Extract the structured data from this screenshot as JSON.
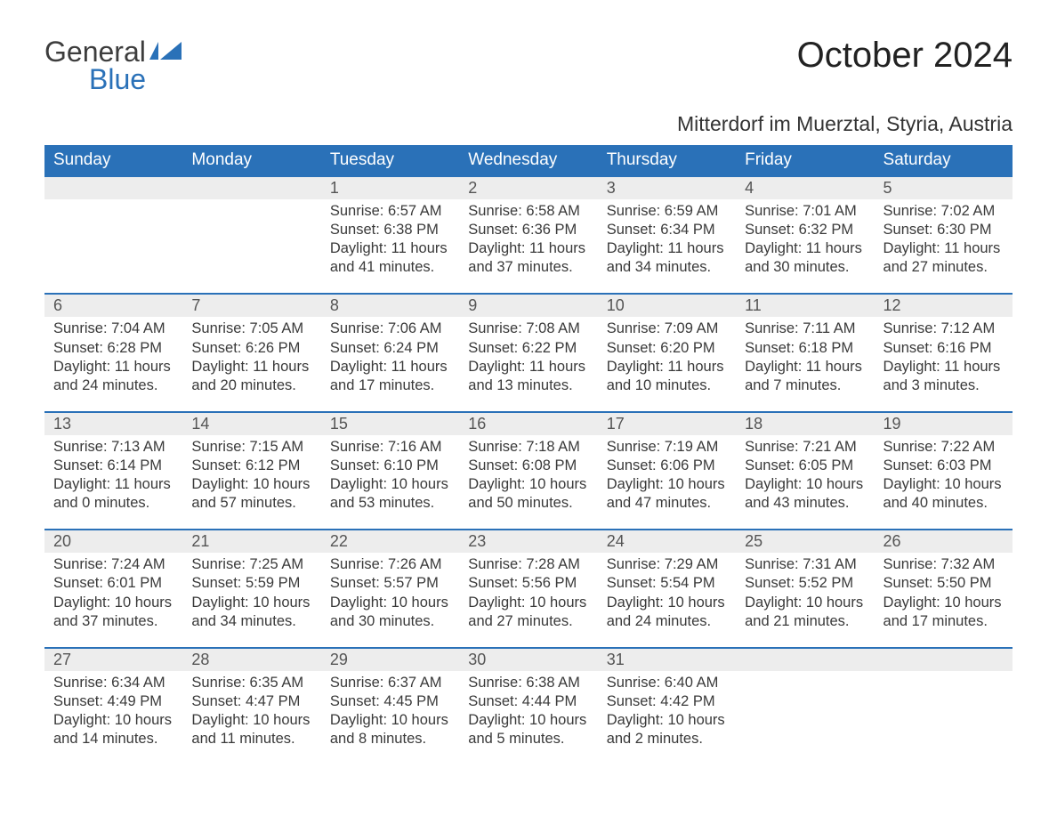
{
  "brand": {
    "general": "General",
    "blue": "Blue"
  },
  "title": "October 2024",
  "location": "Mitterdorf im Muerztal, Styria, Austria",
  "colors": {
    "header_bg": "#2a71b8",
    "header_fg": "#ffffff",
    "daynum_bg": "#ededed",
    "border_top": "#2a71b8",
    "text": "#3a3a3a",
    "page_bg": "#ffffff"
  },
  "weekdays": [
    "Sunday",
    "Monday",
    "Tuesday",
    "Wednesday",
    "Thursday",
    "Friday",
    "Saturday"
  ],
  "weeks": [
    [
      null,
      null,
      {
        "day": "1",
        "sunrise": "6:57 AM",
        "sunset": "6:38 PM",
        "daylight": "11 hours and 41 minutes."
      },
      {
        "day": "2",
        "sunrise": "6:58 AM",
        "sunset": "6:36 PM",
        "daylight": "11 hours and 37 minutes."
      },
      {
        "day": "3",
        "sunrise": "6:59 AM",
        "sunset": "6:34 PM",
        "daylight": "11 hours and 34 minutes."
      },
      {
        "day": "4",
        "sunrise": "7:01 AM",
        "sunset": "6:32 PM",
        "daylight": "11 hours and 30 minutes."
      },
      {
        "day": "5",
        "sunrise": "7:02 AM",
        "sunset": "6:30 PM",
        "daylight": "11 hours and 27 minutes."
      }
    ],
    [
      {
        "day": "6",
        "sunrise": "7:04 AM",
        "sunset": "6:28 PM",
        "daylight": "11 hours and 24 minutes."
      },
      {
        "day": "7",
        "sunrise": "7:05 AM",
        "sunset": "6:26 PM",
        "daylight": "11 hours and 20 minutes."
      },
      {
        "day": "8",
        "sunrise": "7:06 AM",
        "sunset": "6:24 PM",
        "daylight": "11 hours and 17 minutes."
      },
      {
        "day": "9",
        "sunrise": "7:08 AM",
        "sunset": "6:22 PM",
        "daylight": "11 hours and 13 minutes."
      },
      {
        "day": "10",
        "sunrise": "7:09 AM",
        "sunset": "6:20 PM",
        "daylight": "11 hours and 10 minutes."
      },
      {
        "day": "11",
        "sunrise": "7:11 AM",
        "sunset": "6:18 PM",
        "daylight": "11 hours and 7 minutes."
      },
      {
        "day": "12",
        "sunrise": "7:12 AM",
        "sunset": "6:16 PM",
        "daylight": "11 hours and 3 minutes."
      }
    ],
    [
      {
        "day": "13",
        "sunrise": "7:13 AM",
        "sunset": "6:14 PM",
        "daylight": "11 hours and 0 minutes."
      },
      {
        "day": "14",
        "sunrise": "7:15 AM",
        "sunset": "6:12 PM",
        "daylight": "10 hours and 57 minutes."
      },
      {
        "day": "15",
        "sunrise": "7:16 AM",
        "sunset": "6:10 PM",
        "daylight": "10 hours and 53 minutes."
      },
      {
        "day": "16",
        "sunrise": "7:18 AM",
        "sunset": "6:08 PM",
        "daylight": "10 hours and 50 minutes."
      },
      {
        "day": "17",
        "sunrise": "7:19 AM",
        "sunset": "6:06 PM",
        "daylight": "10 hours and 47 minutes."
      },
      {
        "day": "18",
        "sunrise": "7:21 AM",
        "sunset": "6:05 PM",
        "daylight": "10 hours and 43 minutes."
      },
      {
        "day": "19",
        "sunrise": "7:22 AM",
        "sunset": "6:03 PM",
        "daylight": "10 hours and 40 minutes."
      }
    ],
    [
      {
        "day": "20",
        "sunrise": "7:24 AM",
        "sunset": "6:01 PM",
        "daylight": "10 hours and 37 minutes."
      },
      {
        "day": "21",
        "sunrise": "7:25 AM",
        "sunset": "5:59 PM",
        "daylight": "10 hours and 34 minutes."
      },
      {
        "day": "22",
        "sunrise": "7:26 AM",
        "sunset": "5:57 PM",
        "daylight": "10 hours and 30 minutes."
      },
      {
        "day": "23",
        "sunrise": "7:28 AM",
        "sunset": "5:56 PM",
        "daylight": "10 hours and 27 minutes."
      },
      {
        "day": "24",
        "sunrise": "7:29 AM",
        "sunset": "5:54 PM",
        "daylight": "10 hours and 24 minutes."
      },
      {
        "day": "25",
        "sunrise": "7:31 AM",
        "sunset": "5:52 PM",
        "daylight": "10 hours and 21 minutes."
      },
      {
        "day": "26",
        "sunrise": "7:32 AM",
        "sunset": "5:50 PM",
        "daylight": "10 hours and 17 minutes."
      }
    ],
    [
      {
        "day": "27",
        "sunrise": "6:34 AM",
        "sunset": "4:49 PM",
        "daylight": "10 hours and 14 minutes."
      },
      {
        "day": "28",
        "sunrise": "6:35 AM",
        "sunset": "4:47 PM",
        "daylight": "10 hours and 11 minutes."
      },
      {
        "day": "29",
        "sunrise": "6:37 AM",
        "sunset": "4:45 PM",
        "daylight": "10 hours and 8 minutes."
      },
      {
        "day": "30",
        "sunrise": "6:38 AM",
        "sunset": "4:44 PM",
        "daylight": "10 hours and 5 minutes."
      },
      {
        "day": "31",
        "sunrise": "6:40 AM",
        "sunset": "4:42 PM",
        "daylight": "10 hours and 2 minutes."
      },
      null,
      null
    ]
  ],
  "labels": {
    "sunrise_prefix": "Sunrise: ",
    "sunset_prefix": "Sunset: ",
    "daylight_prefix": "Daylight: "
  }
}
